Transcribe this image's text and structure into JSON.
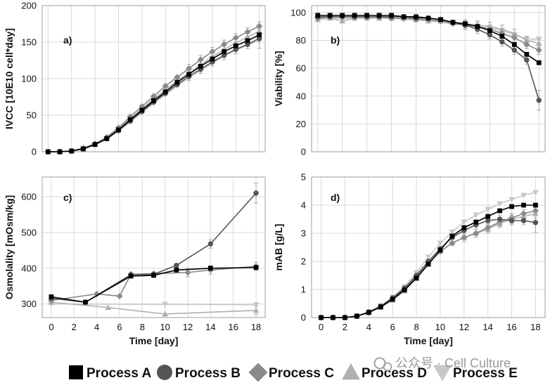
{
  "colors": {
    "process_a": "#000000",
    "process_b": "#555555",
    "process_c": "#8a8a8a",
    "process_d": "#b0b0b0",
    "process_e": "#c8c8c8",
    "error_bar": "#aaaaaa",
    "grid": "#d9d9d9"
  },
  "legend": {
    "items": [
      {
        "label": "Process A",
        "marker": "square"
      },
      {
        "label": "Process B",
        "marker": "circle"
      },
      {
        "label": "Process C",
        "marker": "diamond"
      },
      {
        "label": "Process D",
        "marker": "triangle-up"
      },
      {
        "label": "Process E",
        "marker": "triangle-down"
      }
    ]
  },
  "watermark": {
    "text": "公众号 · Cell Culture",
    "icon": "wechat-icon"
  },
  "chart_data": [
    {
      "panel": "a)",
      "type": "line",
      "xlabel": "",
      "ylabel": "IVCC [10E10 cell*day]",
      "xlim": [
        -0.5,
        18.5
      ],
      "ylim": [
        0,
        200
      ],
      "xticks": [
        0,
        2,
        4,
        6,
        8,
        10,
        12,
        14,
        16,
        18
      ],
      "yticks": [
        0,
        50,
        100,
        150,
        200
      ],
      "show_xticklabels": false,
      "grid": true,
      "x": [
        0,
        1,
        2,
        3,
        4,
        5,
        6,
        7,
        8,
        9,
        10,
        11,
        12,
        13,
        14,
        15,
        16,
        17,
        18
      ],
      "series": [
        {
          "name": "Process A",
          "marker": "square",
          "values": [
            0,
            0,
            1,
            4,
            10,
            18,
            30,
            44,
            57,
            70,
            82,
            95,
            106,
            117,
            127,
            137,
            145,
            152,
            160
          ]
        },
        {
          "name": "Process B",
          "marker": "circle",
          "values": [
            0,
            0,
            1,
            4,
            10,
            18,
            29,
            42,
            55,
            68,
            80,
            92,
            103,
            113,
            123,
            132,
            140,
            147,
            155
          ]
        },
        {
          "name": "Process C",
          "marker": "diamond",
          "values": [
            0,
            0,
            1,
            5,
            11,
            20,
            33,
            48,
            62,
            76,
            90,
            102,
            114,
            126,
            137,
            147,
            156,
            164,
            172
          ]
        },
        {
          "name": "Process D",
          "marker": "triangle-up",
          "values": [
            0,
            0,
            1,
            4,
            10,
            19,
            31,
            45,
            59,
            72,
            85,
            97,
            108,
            119,
            130,
            140,
            149,
            157,
            165
          ]
        },
        {
          "name": "Process E",
          "marker": "triangle-down",
          "values": [
            0,
            0,
            1,
            4,
            9,
            17,
            28,
            41,
            54,
            66,
            78,
            90,
            101,
            111,
            121,
            131,
            139,
            146,
            152
          ]
        }
      ]
    },
    {
      "panel": "b)",
      "type": "line",
      "xlabel": "",
      "ylabel": "Viability [%]",
      "xlim": [
        -0.5,
        18.5
      ],
      "ylim": [
        0,
        105
      ],
      "xticks": [
        0,
        2,
        4,
        6,
        8,
        10,
        12,
        14,
        16,
        18
      ],
      "yticks": [
        0,
        20,
        40,
        60,
        80,
        100
      ],
      "show_xticklabels": false,
      "grid": true,
      "x": [
        0,
        1,
        2,
        3,
        4,
        5,
        6,
        7,
        8,
        9,
        10,
        11,
        12,
        13,
        14,
        15,
        16,
        17,
        18
      ],
      "series": [
        {
          "name": "Process A",
          "marker": "square",
          "values": [
            98,
            98,
            98,
            98,
            98,
            98,
            98,
            97,
            97,
            96,
            95,
            93,
            92,
            90,
            87,
            83,
            77,
            70,
            64
          ]
        },
        {
          "name": "Process B",
          "marker": "circle",
          "values": [
            97,
            97,
            97,
            97,
            97,
            97,
            97,
            97,
            96,
            96,
            95,
            93,
            91,
            88,
            84,
            79,
            73,
            66,
            37
          ]
        },
        {
          "name": "Process C",
          "marker": "diamond",
          "values": [
            96,
            97,
            97,
            97,
            97,
            97,
            96,
            96,
            95,
            95,
            94,
            92,
            91,
            90,
            88,
            85,
            82,
            77,
            73
          ]
        },
        {
          "name": "Process D",
          "marker": "triangle-up",
          "values": [
            95,
            96,
            94,
            96,
            96,
            96,
            96,
            96,
            95,
            94,
            94,
            93,
            92,
            91,
            90,
            88,
            85,
            80,
            78
          ]
        },
        {
          "name": "Process E",
          "marker": "triangle-down",
          "values": [
            96,
            96,
            96,
            96,
            96,
            96,
            96,
            95,
            95,
            94,
            93,
            92,
            91,
            90,
            89,
            87,
            84,
            81,
            81
          ]
        }
      ]
    },
    {
      "panel": "c)",
      "type": "line",
      "xlabel": "Time [day]",
      "ylabel": "Osmolality [mOsm/kg]",
      "xlim": [
        -0.8,
        18.8
      ],
      "ylim": [
        262,
        655
      ],
      "xticks": [
        0,
        2,
        4,
        6,
        8,
        10,
        12,
        14,
        16,
        18
      ],
      "yticks": [
        300,
        400,
        500,
        600
      ],
      "show_xticklabels": true,
      "grid": true,
      "series": [
        {
          "name": "Process A",
          "marker": "square",
          "x": [
            0,
            3,
            7,
            9,
            11,
            14,
            18
          ],
          "values": [
            320,
            305,
            378,
            380,
            395,
            400,
            402
          ]
        },
        {
          "name": "Process B",
          "marker": "circle",
          "x": [
            0,
            3,
            7,
            9,
            11,
            14,
            18
          ],
          "values": [
            316,
            305,
            382,
            383,
            408,
            468,
            610
          ]
        },
        {
          "name": "Process C",
          "marker": "diamond",
          "x": [
            0,
            4,
            6,
            7,
            9,
            12,
            14,
            18
          ],
          "values": [
            310,
            328,
            322,
            383,
            385,
            388,
            395,
            405
          ]
        },
        {
          "name": "Process D",
          "marker": "triangle-up",
          "x": [
            0,
            5,
            10,
            18
          ],
          "values": [
            305,
            290,
            272,
            282
          ]
        },
        {
          "name": "Process E",
          "marker": "triangle-down",
          "x": [
            0,
            10,
            18
          ],
          "values": [
            300,
            299,
            298
          ]
        }
      ]
    },
    {
      "panel": "d)",
      "type": "line",
      "xlabel": "Time [day]",
      "ylabel": "mAB [g/L]",
      "xlim": [
        -0.8,
        18.8
      ],
      "ylim": [
        0,
        5
      ],
      "xticks": [
        0,
        2,
        4,
        6,
        8,
        10,
        12,
        14,
        16,
        18
      ],
      "yticks": [
        0,
        1,
        2,
        3,
        4,
        5
      ],
      "show_xticklabels": true,
      "grid": true,
      "x": [
        0,
        1,
        2,
        3,
        4,
        5,
        6,
        7,
        8,
        9,
        10,
        11,
        12,
        13,
        14,
        15,
        16,
        17,
        18
      ],
      "series": [
        {
          "name": "Process A",
          "marker": "square",
          "values": [
            0,
            0,
            0,
            0.05,
            0.18,
            0.38,
            0.65,
            0.98,
            1.4,
            1.9,
            2.4,
            2.9,
            3.2,
            3.4,
            3.6,
            3.8,
            3.95,
            4.0,
            4.0
          ]
        },
        {
          "name": "Process B",
          "marker": "circle",
          "values": [
            0,
            0,
            0,
            0.05,
            0.2,
            0.4,
            0.7,
            1.05,
            1.5,
            2.0,
            2.45,
            2.85,
            3.1,
            3.3,
            3.45,
            3.5,
            3.45,
            3.45,
            3.38
          ]
        },
        {
          "name": "Process C",
          "marker": "diamond",
          "values": [
            0,
            0,
            0,
            0.05,
            0.18,
            0.38,
            0.66,
            1.0,
            1.45,
            1.95,
            2.35,
            2.65,
            2.85,
            3.0,
            3.2,
            3.4,
            3.55,
            3.7,
            3.8
          ]
        },
        {
          "name": "Process D",
          "marker": "triangle-up",
          "values": [
            0,
            0,
            0,
            0.05,
            0.18,
            0.36,
            0.62,
            0.95,
            1.4,
            1.9,
            2.35,
            2.65,
            2.85,
            3.0,
            3.15,
            3.35,
            3.5,
            3.6,
            3.7
          ]
        },
        {
          "name": "Process E",
          "marker": "triangle-down",
          "values": [
            0,
            0,
            0,
            0.06,
            0.2,
            0.42,
            0.72,
            1.1,
            1.6,
            2.15,
            2.65,
            3.05,
            3.4,
            3.65,
            3.85,
            4.05,
            4.2,
            4.35,
            4.45
          ]
        }
      ]
    }
  ]
}
